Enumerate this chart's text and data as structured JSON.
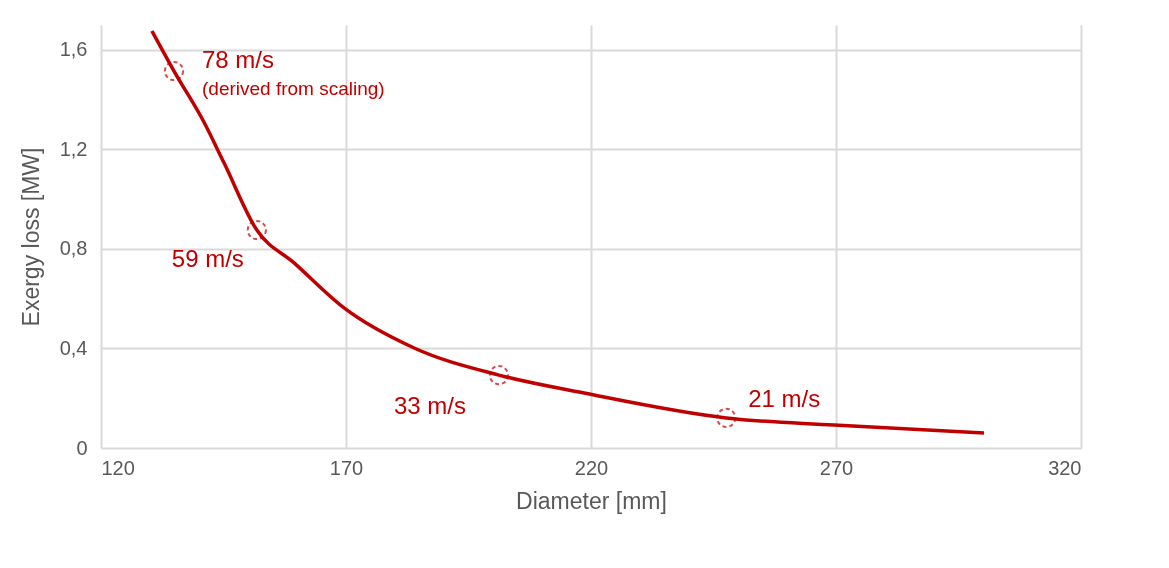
{
  "chart_data": {
    "type": "line",
    "xlabel": "Diameter [mm]",
    "ylabel": "Exergy loss [MW]",
    "xlim": [
      120,
      320
    ],
    "xticks": [
      120,
      170,
      220,
      270,
      320
    ],
    "ylim": [
      0,
      1.7
    ],
    "yticks": [
      0,
      {
        "value": 0.4,
        "label": "0,4"
      },
      {
        "value": 0.8,
        "label": "0,8"
      },
      {
        "value": 1.2,
        "label": "1,2"
      },
      {
        "value": 1.6,
        "label": "1,6"
      }
    ],
    "grid": true,
    "series": [
      {
        "color": "#c00000",
        "marker": "none",
        "line_style": "solid",
        "x": [
          130.4,
          134.9,
          141,
          145.1,
          151.8,
          159.4,
          169.6,
          183.9,
          201.2,
          218.6,
          247.6,
          269.6,
          300.2
        ],
        "values": [
          1.676,
          1.515,
          1.31,
          1.146,
          0.876,
          0.744,
          0.563,
          0.402,
          0.293,
          0.221,
          0.121,
          0.092,
          0.06
        ]
      },
      {
        "type": "scatter",
        "color": "#c00000",
        "marker": "circle",
        "x": [
          134.9,
          151.8,
          201.2,
          247.6
        ],
        "values": [
          1.515,
          0.876,
          0.293,
          0.121
        ]
      }
    ],
    "annotations": [
      {
        "text": "78 m/s\n(derived from scaling)",
        "x": 134.9,
        "y": 1.515
      },
      {
        "text": "59 m/s",
        "x": 151.8,
        "y": 0.876
      },
      {
        "text": "33 m/s",
        "x": 201.2,
        "y": 0.293
      },
      {
        "text": "21 m/s",
        "x": 247.6,
        "y": 0.121
      }
    ]
  }
}
